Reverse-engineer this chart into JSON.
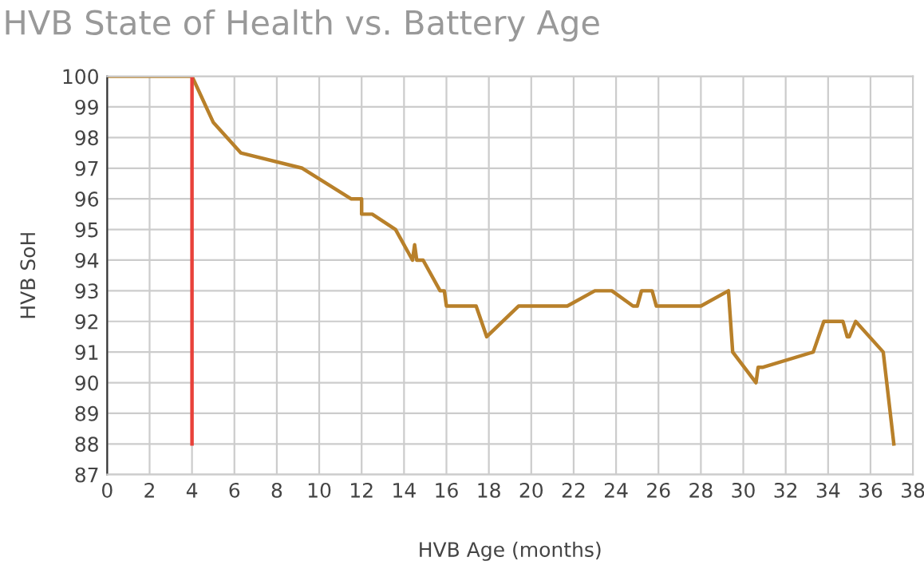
{
  "chart_data": {
    "type": "line",
    "title": "HVB State of Health vs. Battery Age",
    "xlabel": "HVB Age (months)",
    "ylabel": "HVB SoH",
    "series": [
      {
        "color": "#b8802a",
        "x": [
          0,
          4,
          5,
          6.3,
          9.2,
          11.5,
          12,
          12,
          12.5,
          13.6,
          14.4,
          14.5,
          14.6,
          14.9,
          15.7,
          15.9,
          16,
          17.4,
          17.9,
          19.4,
          21.7,
          23,
          23.8,
          24.8,
          25,
          25.2,
          25.7,
          25.9,
          28,
          29.3,
          29.5,
          30.6,
          30.7,
          30.9,
          33.3,
          33.8,
          34.7,
          34.9,
          35,
          35.3,
          36.6,
          37.1
        ],
        "values": [
          100,
          100,
          98.5,
          97.5,
          97,
          96,
          96,
          95.5,
          95.5,
          95,
          94,
          94.5,
          94,
          94,
          93,
          93,
          92.5,
          92.5,
          91.5,
          92.5,
          92.5,
          93,
          93,
          92.5,
          92.5,
          93,
          93,
          92.5,
          92.5,
          93,
          91,
          90,
          90.5,
          90.5,
          91,
          92,
          92,
          91.5,
          91.5,
          92,
          91,
          88
        ]
      },
      {
        "color": "#e8413a",
        "x": [
          4,
          4
        ],
        "values": [
          88,
          100
        ]
      }
    ],
    "xlim": [
      0,
      38
    ],
    "xticks": [
      0,
      2,
      4,
      6,
      8,
      10,
      12,
      14,
      16,
      18,
      20,
      22,
      24,
      26,
      28,
      30,
      32,
      34,
      36,
      38
    ],
    "ylim": [
      87,
      100
    ],
    "yticks": [
      87,
      88,
      89,
      90,
      91,
      92,
      93,
      94,
      95,
      96,
      97,
      98,
      99,
      100
    ],
    "grid": true,
    "marker": "none",
    "line_style": "solid"
  }
}
